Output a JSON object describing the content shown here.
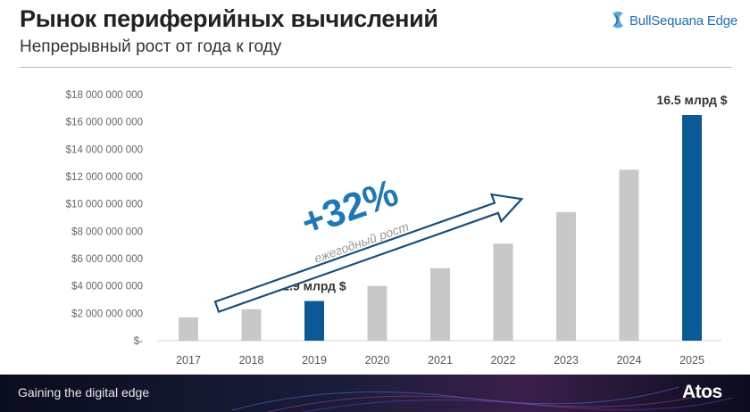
{
  "header": {
    "title": "Рынок периферийных вычислений",
    "subtitle": "Непрерывный рост от года к году",
    "logo_text": "BullSequana Edge"
  },
  "chart_data": {
    "type": "bar",
    "title": "",
    "xlabel": "",
    "ylabel": "",
    "categories": [
      "2017",
      "2018",
      "2019",
      "2020",
      "2021",
      "2022",
      "2023",
      "2024",
      "2025"
    ],
    "values": [
      1700000000,
      2300000000,
      2900000000,
      4000000000,
      5300000000,
      7100000000,
      9400000000,
      12500000000,
      16500000000
    ],
    "ylim": [
      0,
      18000000000
    ],
    "yticks": [
      0,
      2000000000,
      4000000000,
      6000000000,
      8000000000,
      10000000000,
      12000000000,
      14000000000,
      16000000000,
      18000000000
    ],
    "ytick_labels": [
      "$-",
      "$2 000 000 000",
      "$4 000 000 000",
      "$6 000 000 000",
      "$8 000 000 000",
      "$10 000 000 000",
      "$12 000 000 000",
      "$14 000 000 000",
      "$16 000 000 000",
      "$18 000 000 000"
    ],
    "highlighted": [
      "2019",
      "2025"
    ],
    "data_labels": [
      {
        "category": "2019",
        "text": "2.9 млрд $"
      },
      {
        "category": "2025",
        "text": "16.5 млрд $"
      }
    ],
    "annotation": {
      "growth": "+32%",
      "caption": "ежегодный рост"
    },
    "grid": false,
    "legend": "none"
  },
  "colors": {
    "bar": "#c8c8c8",
    "highlight": "#0b5a96",
    "accent": "#1f78b4",
    "footer_bg": "#0a0d1e"
  },
  "footer": {
    "tagline": "Gaining the digital edge",
    "brand": "Atos"
  }
}
